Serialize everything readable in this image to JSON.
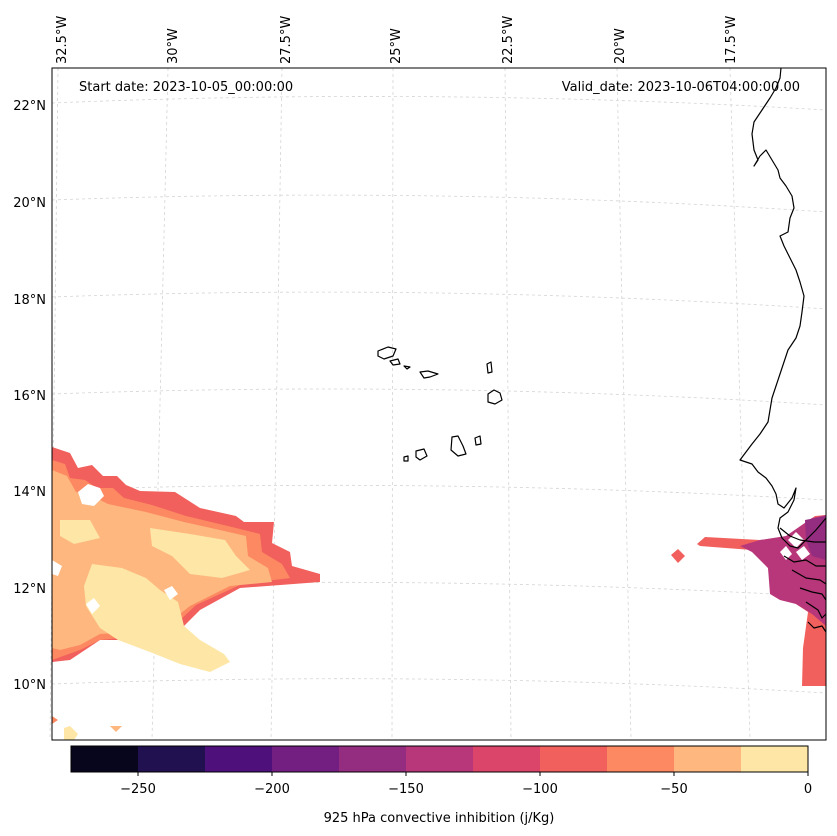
{
  "map": {
    "start_date_label": "Start date: 2023-10-05_00:00:00",
    "valid_date_label": "Valid_date: 2023-10-06T04:00:00.00",
    "longitude_labels": [
      "32.5°W",
      "30°W",
      "27.5°W",
      "25°W",
      "22.5°W",
      "20°W",
      "17.5°W"
    ],
    "latitude_labels": [
      "22°N",
      "20°N",
      "18°N",
      "16°N",
      "14°N",
      "12°N",
      "10°N"
    ],
    "gridlines": true,
    "colormap": "magma",
    "colorbar": {
      "label": "925 hPa convective inhibition (j/Kg)",
      "ticks": [
        "−250",
        "−200",
        "−150",
        "−100",
        "−50",
        "0"
      ],
      "levels": [
        -275,
        -250,
        -225,
        -200,
        -175,
        -150,
        -125,
        -100,
        -75,
        -50,
        -25,
        0
      ],
      "colors": [
        "#07061c",
        "#221150",
        "#4e117b",
        "#731f81",
        "#942c80",
        "#b8377a",
        "#da4569",
        "#f1605d",
        "#fc8961",
        "#feb77e",
        "#fde6a6"
      ]
    },
    "coastline_color": "#000000"
  }
}
